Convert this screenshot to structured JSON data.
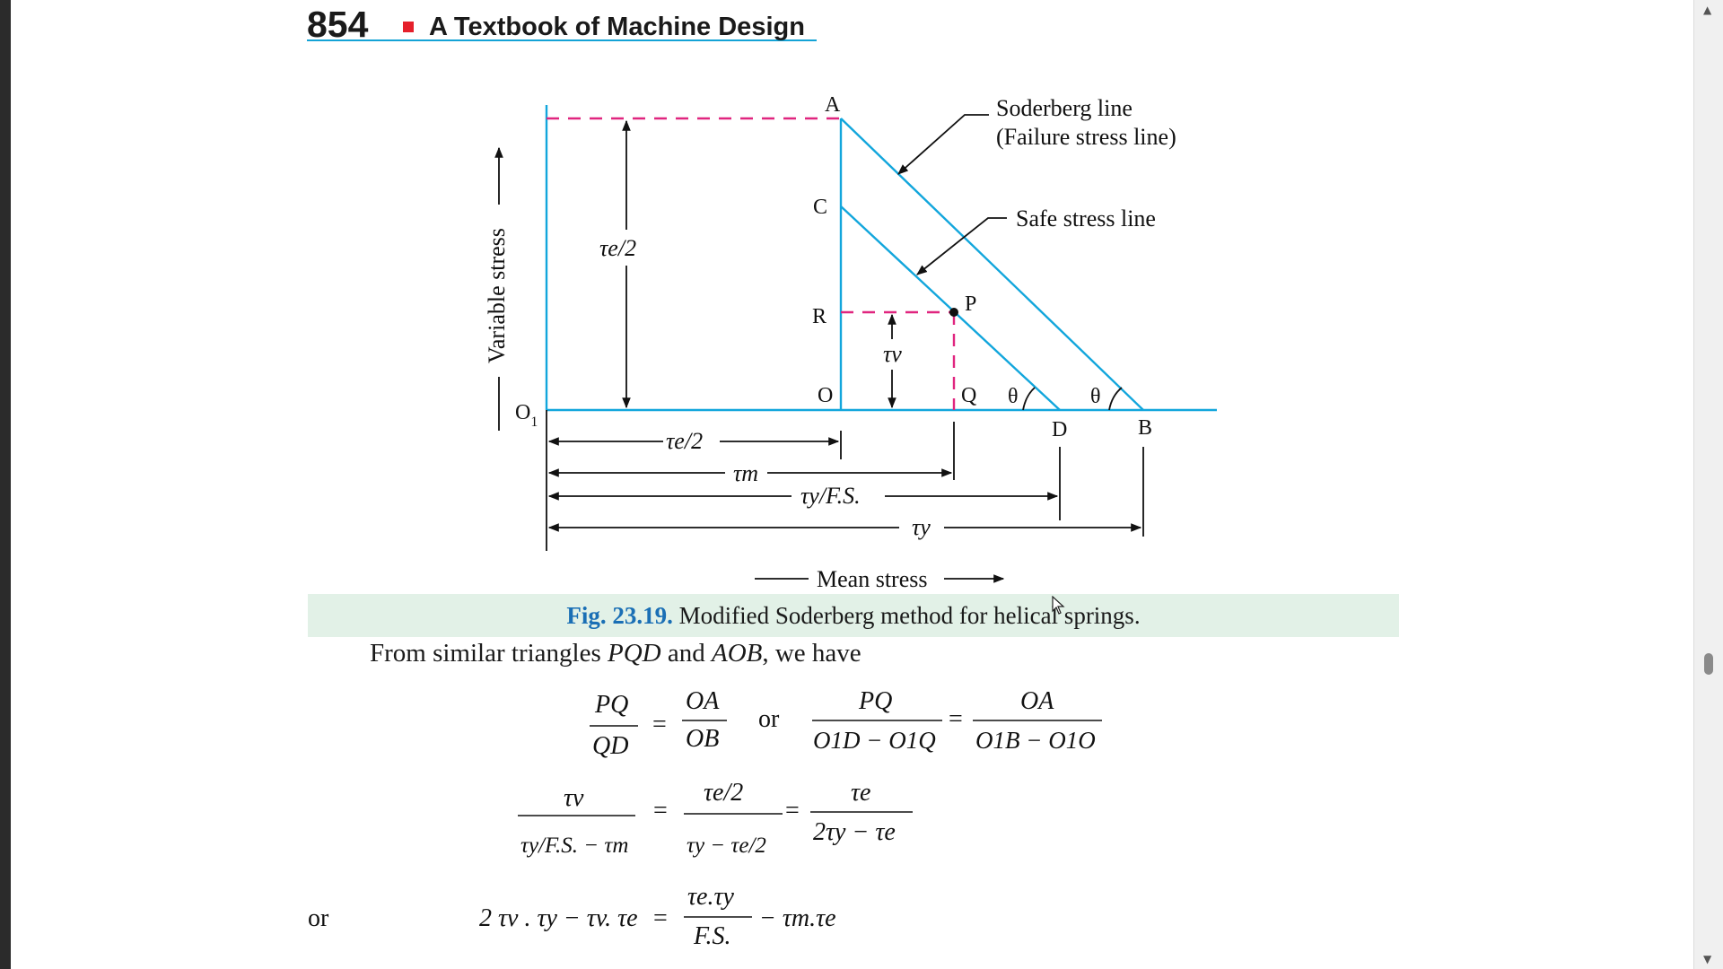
{
  "header": {
    "page_number": "854",
    "book_title": "A Textbook of Machine Design"
  },
  "figure": {
    "axis_y_label": "Variable stress",
    "axis_x_label": "Mean stress",
    "soderberg_line_label": "Soderberg line",
    "soderberg_line_sublabel": "(Failure stress line)",
    "safe_line_label": "Safe stress line",
    "points": {
      "a": "A",
      "c": "C",
      "r": "R",
      "o": "O",
      "o1": "O",
      "o1_sub": "1",
      "p": "P",
      "q": "Q",
      "d": "D",
      "b": "B"
    },
    "angle_label": "θ",
    "dim_te2_vertical": "τe/2",
    "dim_tv": "τv",
    "dim_te2_horizontal": "τe/2",
    "dim_tm": "τm",
    "dim_ty_fs": "τy/F.S.",
    "dim_ty": "τy"
  },
  "caption": {
    "label": "Fig. 23.19.",
    "text": " Modified Soderberg method for helical springs."
  },
  "body": {
    "sentence_prefix": "From similar triangles ",
    "triangle1": "PQD",
    "sentence_and": " and ",
    "triangle2": "AOB",
    "sentence_suffix": ", we have",
    "or_label": "or",
    "or_label_left": "or"
  },
  "equations": {
    "eq1_left_num": "PQ",
    "eq1_left_den": "QD",
    "eq1_mid_num": "OA",
    "eq1_mid_den": "OB",
    "eq1_right_num": "PQ",
    "eq1_right_den": "O1D − O1Q",
    "eq1_far_num": "OA",
    "eq1_far_den": "O1B − O1O",
    "eq2_left_num": "τv",
    "eq2_left_den": "τy/F.S. − τm",
    "eq2_mid_num": "τe/2",
    "eq2_mid_den": "τy − τe/2",
    "eq2_right_num": "τe",
    "eq2_right_den": "2τy − τe",
    "eq3_lhs": "2 τv . τy − τv. τe",
    "eq3_num": "τe.τy",
    "eq3_den": "F.S.",
    "eq3_tail": "− τm.τe"
  }
}
